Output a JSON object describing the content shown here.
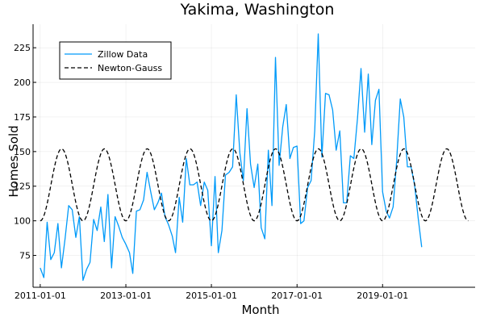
{
  "chart_data": {
    "type": "line",
    "title": "Yakima, Washington",
    "xlabel": "Month",
    "ylabel": "Homes Sold",
    "x_ticks": [
      "2011-01-01",
      "2013-01-01",
      "2015-01-01",
      "2017-01-01",
      "2019-01-01"
    ],
    "y_ticks": [
      75,
      100,
      125,
      150,
      175,
      200,
      225
    ],
    "xlim": [
      "2010-11-01",
      "2021-03-01"
    ],
    "ylim": [
      52,
      242
    ],
    "grid": true,
    "legend_position": "top-left",
    "series": [
      {
        "name": "Zillow Data",
        "color": "#009af9",
        "style": "solid",
        "x": [
          "2011-01-01",
          "2011-02-01",
          "2011-03-01",
          "2011-04-01",
          "2011-05-01",
          "2011-06-01",
          "2011-07-01",
          "2011-08-01",
          "2011-09-01",
          "2011-10-01",
          "2011-11-01",
          "2011-12-01",
          "2012-01-01",
          "2012-02-01",
          "2012-03-01",
          "2012-04-01",
          "2012-05-01",
          "2012-06-01",
          "2012-07-01",
          "2012-08-01",
          "2012-09-01",
          "2012-10-01",
          "2012-11-01",
          "2012-12-01",
          "2013-01-01",
          "2013-02-01",
          "2013-03-01",
          "2013-04-01",
          "2013-05-01",
          "2013-06-01",
          "2013-07-01",
          "2013-08-01",
          "2013-09-01",
          "2013-10-01",
          "2013-11-01",
          "2013-12-01",
          "2014-01-01",
          "2014-02-01",
          "2014-03-01",
          "2014-04-01",
          "2014-05-01",
          "2014-06-01",
          "2014-07-01",
          "2014-08-01",
          "2014-09-01",
          "2014-10-01",
          "2014-11-01",
          "2014-12-01",
          "2015-01-01",
          "2015-02-01",
          "2015-03-01",
          "2015-04-01",
          "2015-05-01",
          "2015-06-01",
          "2015-07-01",
          "2015-08-01",
          "2015-09-01",
          "2015-10-01",
          "2015-11-01",
          "2015-12-01",
          "2016-01-01",
          "2016-02-01",
          "2016-03-01",
          "2016-04-01",
          "2016-05-01",
          "2016-06-01",
          "2016-07-01",
          "2016-08-01",
          "2016-09-01",
          "2016-10-01",
          "2016-11-01",
          "2016-12-01",
          "2017-01-01",
          "2017-02-01",
          "2017-03-01",
          "2017-04-01",
          "2017-05-01",
          "2017-06-01",
          "2017-07-01",
          "2017-08-01",
          "2017-09-01",
          "2017-10-01",
          "2017-11-01",
          "2017-12-01",
          "2018-01-01",
          "2018-02-01",
          "2018-03-01",
          "2018-04-01",
          "2018-05-01",
          "2018-06-01",
          "2018-07-01",
          "2018-08-01",
          "2018-09-01",
          "2018-10-01",
          "2018-11-01",
          "2018-12-01",
          "2019-01-01",
          "2019-02-01",
          "2019-03-01",
          "2019-04-01",
          "2019-05-01",
          "2019-06-01",
          "2019-07-01",
          "2019-08-01",
          "2019-09-01",
          "2019-10-01",
          "2019-11-01",
          "2019-12-01"
        ],
        "values": [
          66,
          59,
          99,
          72,
          77,
          98,
          66,
          87,
          111,
          108,
          88,
          103,
          57,
          65,
          70,
          101,
          93,
          110,
          85,
          119,
          66,
          103,
          96,
          88,
          83,
          77,
          62,
          107,
          108,
          115,
          135,
          121,
          108,
          113,
          120,
          103,
          97,
          89,
          77,
          117,
          99,
          145,
          126,
          126,
          128,
          111,
          128,
          122,
          82,
          132,
          77,
          93,
          133,
          135,
          139,
          191,
          149,
          129,
          181,
          141,
          124,
          141,
          95,
          87,
          151,
          111,
          218,
          140,
          168,
          184,
          145,
          153,
          154,
          98,
          100,
          124,
          129,
          165,
          235,
          146,
          192,
          191,
          180,
          151,
          165,
          113,
          113,
          147,
          145,
          174,
          210,
          164,
          206,
          155,
          187,
          195,
          121,
          107,
          102,
          110,
          143,
          188,
          175,
          139,
          139,
          126,
          102,
          81
        ]
      },
      {
        "name": "Newton-Gauss",
        "color": "#000000",
        "style": "dashed",
        "description": "Fitted sinusoid: amplitude 26, mean 126, period 12 months",
        "x": [
          "2011-01-01",
          "2021-01-01"
        ],
        "values": [
          100,
          100
        ]
      }
    ]
  }
}
